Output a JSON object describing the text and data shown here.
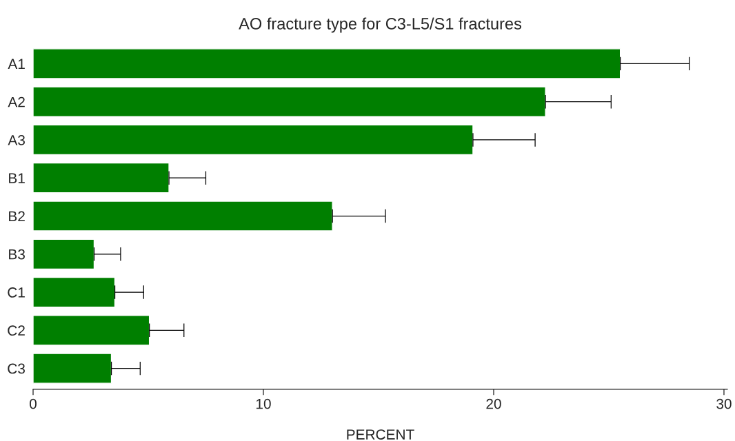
{
  "chart_data": {
    "type": "bar",
    "orientation": "horizontal",
    "title": "AO fracture type for C3-L5/S1 fractures",
    "xlabel": "PERCENT",
    "categories": [
      "A1",
      "A2",
      "A3",
      "B1",
      "B2",
      "B3",
      "C1",
      "C2",
      "C3"
    ],
    "values": [
      25.5,
      22.25,
      19.1,
      5.9,
      13.0,
      2.65,
      3.55,
      5.05,
      3.4
    ],
    "errors": [
      [
        25.5,
        28.5
      ],
      [
        22.25,
        25.1
      ],
      [
        19.1,
        21.8
      ],
      [
        5.9,
        7.5
      ],
      [
        13.0,
        15.3
      ],
      [
        2.65,
        3.8
      ],
      [
        3.55,
        4.8
      ],
      [
        5.05,
        6.55
      ],
      [
        3.4,
        4.65
      ]
    ],
    "color": "#007f00",
    "xlim": [
      0,
      30.15
    ],
    "xticks": [
      0,
      10,
      20,
      30
    ],
    "grid": false
  }
}
